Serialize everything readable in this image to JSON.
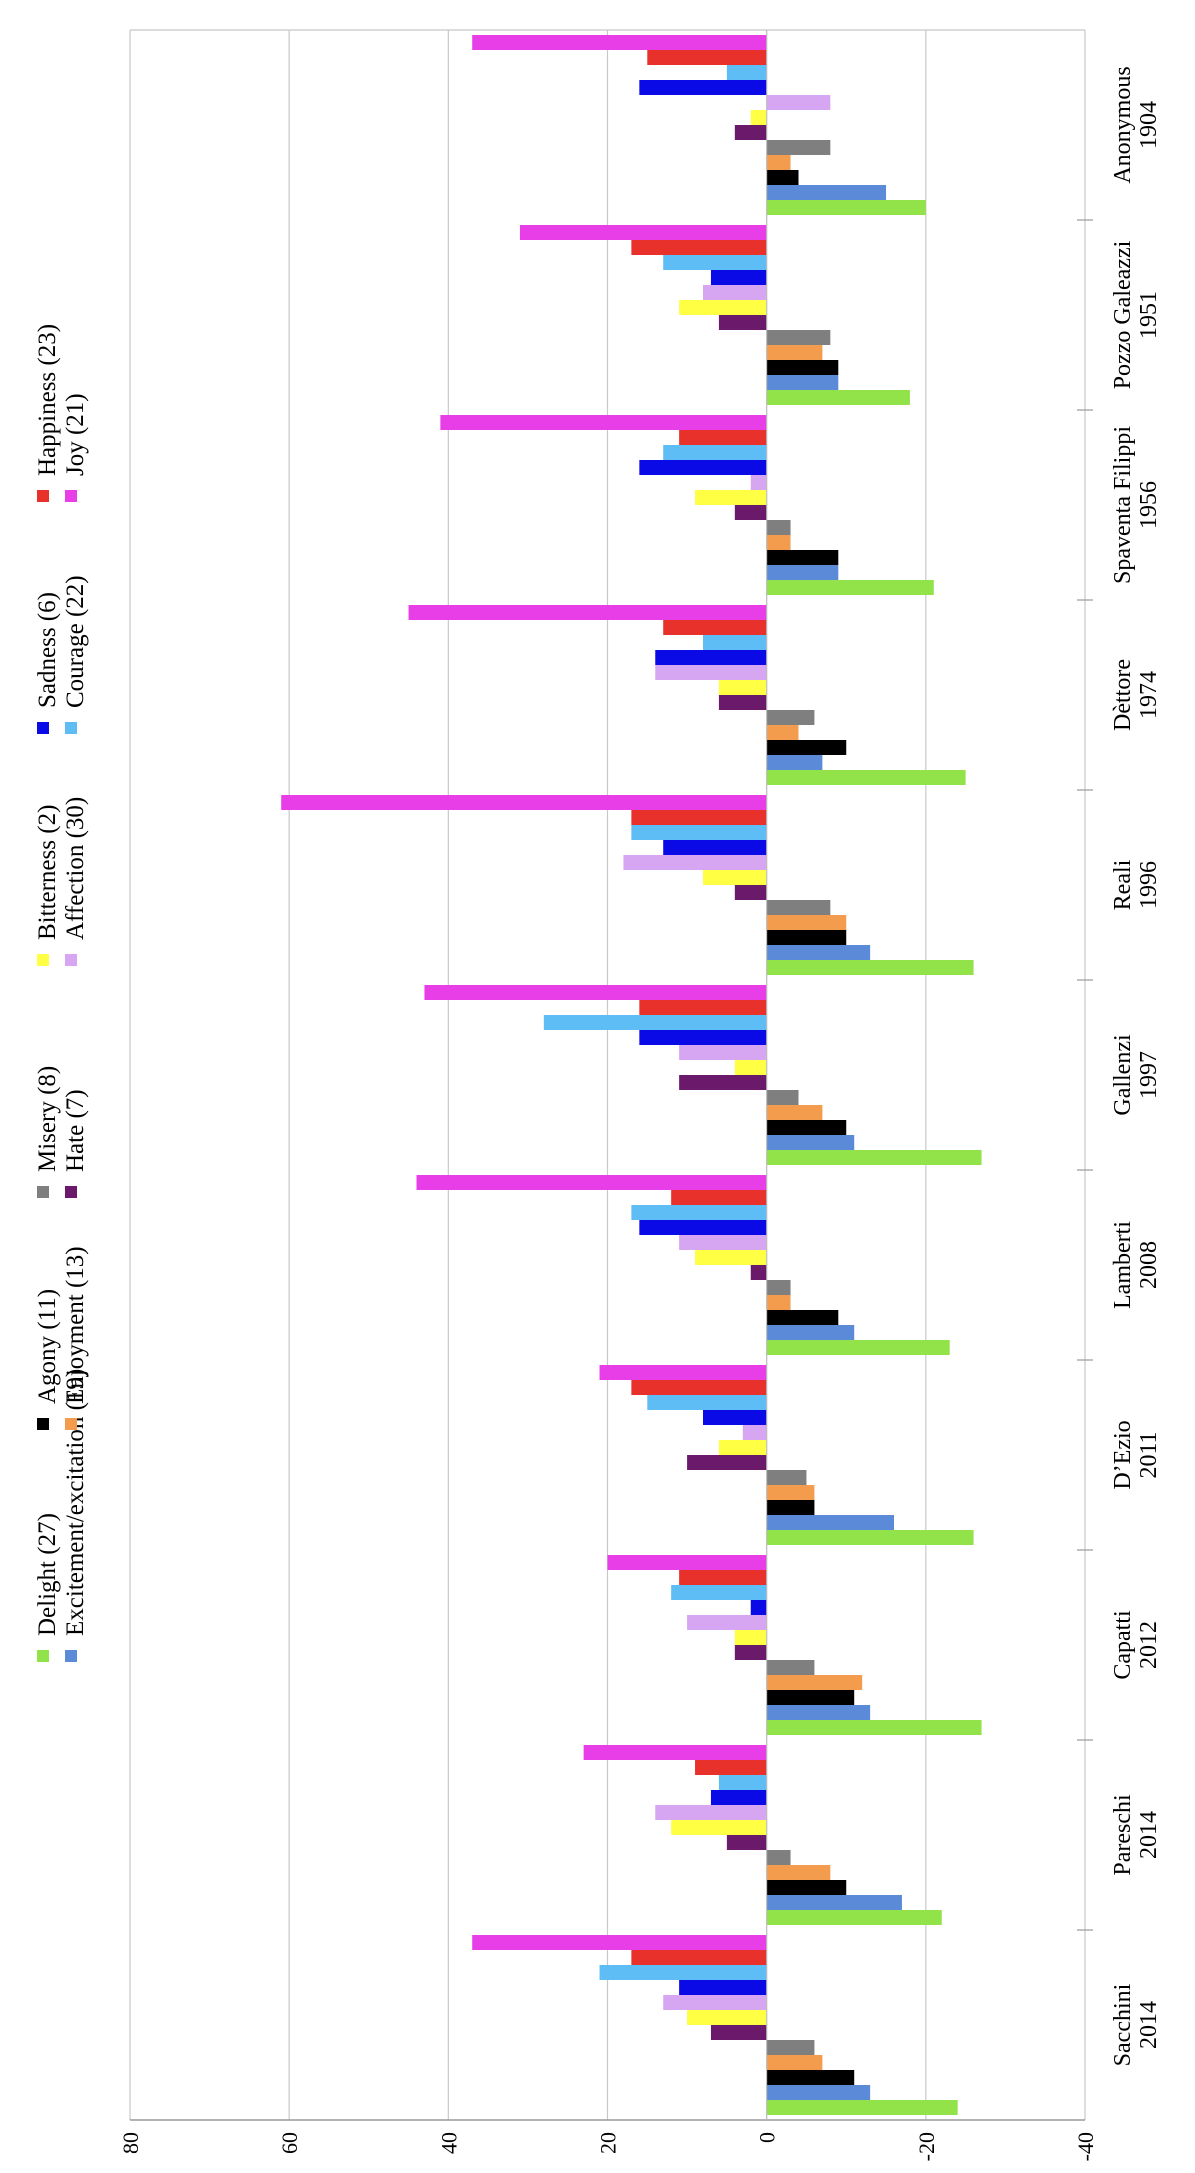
{
  "chart_data": {
    "type": "bar",
    "orientation": "rotated",
    "title": "",
    "xlabel": "",
    "ylabel": "",
    "ylim": [
      -40,
      80
    ],
    "yticks": [
      80,
      60,
      40,
      20,
      0,
      -20,
      -40
    ],
    "grid": true,
    "legend_position": "top",
    "categories": [
      {
        "name": "Anonymous",
        "year": "1904"
      },
      {
        "name": "Pozzo Galeazzi",
        "year": "1951"
      },
      {
        "name": "Spaventa Filippi",
        "year": "1956"
      },
      {
        "name": "Dèttore",
        "year": "1974"
      },
      {
        "name": "Reali",
        "year": "1996"
      },
      {
        "name": "Gallenzi",
        "year": "1997"
      },
      {
        "name": "Lamberti",
        "year": "2008"
      },
      {
        "name": "D’Ezio",
        "year": "2011"
      },
      {
        "name": "Capatti",
        "year": "2012"
      },
      {
        "name": "Pareschi",
        "year": "2014"
      },
      {
        "name": "Sacchini",
        "year": "2014"
      }
    ],
    "series": [
      {
        "name": "Delight (27)",
        "color": "#92e34a",
        "values": [
          -20,
          -18,
          -21,
          -25,
          -26,
          -27,
          -23,
          -26,
          -27,
          -22,
          -24
        ]
      },
      {
        "name": "Excitement/excitation (19)",
        "color": "#5b8bd8",
        "values": [
          -15,
          -9,
          -9,
          -7,
          -13,
          -11,
          -11,
          -16,
          -13,
          -17,
          -13
        ]
      },
      {
        "name": "Agony (11)",
        "color": "#000000",
        "values": [
          -4,
          -9,
          -9,
          -10,
          -10,
          -10,
          -9,
          -6,
          -11,
          -10,
          -11
        ]
      },
      {
        "name": "Enjoyment (13)",
        "color": "#f39c4e",
        "values": [
          -3,
          -7,
          -3,
          -4,
          -10,
          -7,
          -3,
          -6,
          -12,
          -8,
          -7
        ]
      },
      {
        "name": "Misery (8)",
        "color": "#7f7f7f",
        "values": [
          -8,
          -8,
          -3,
          -6,
          -8,
          -4,
          -3,
          -5,
          -6,
          -3,
          -6
        ]
      },
      {
        "name": "Hate (7)",
        "color": "#6b1a6b",
        "values": [
          4,
          6,
          4,
          6,
          4,
          11,
          2,
          10,
          4,
          5,
          7
        ]
      },
      {
        "name": "Bitterness (2)",
        "color": "#ffff44",
        "values": [
          2,
          11,
          9,
          6,
          8,
          4,
          9,
          6,
          4,
          12,
          10
        ]
      },
      {
        "name": "Affection (30)",
        "color": "#d7a6f2",
        "values": [
          -8,
          8,
          2,
          14,
          18,
          11,
          11,
          3,
          10,
          14,
          13
        ]
      },
      {
        "name": "Sadness (6)",
        "color": "#0a0ae6",
        "values": [
          16,
          7,
          16,
          14,
          13,
          16,
          16,
          8,
          2,
          7,
          11
        ]
      },
      {
        "name": "Courage (22)",
        "color": "#5ebdf5",
        "values": [
          5,
          13,
          13,
          8,
          17,
          28,
          17,
          15,
          12,
          6,
          21
        ]
      },
      {
        "name": "Happiness (23)",
        "color": "#e8312a",
        "values": [
          15,
          17,
          11,
          13,
          17,
          16,
          12,
          17,
          11,
          9,
          17
        ]
      },
      {
        "name": "Joy (21)",
        "color": "#e83ee8",
        "values": [
          37,
          31,
          41,
          45,
          61,
          43,
          44,
          21,
          20,
          23,
          37
        ]
      }
    ]
  }
}
